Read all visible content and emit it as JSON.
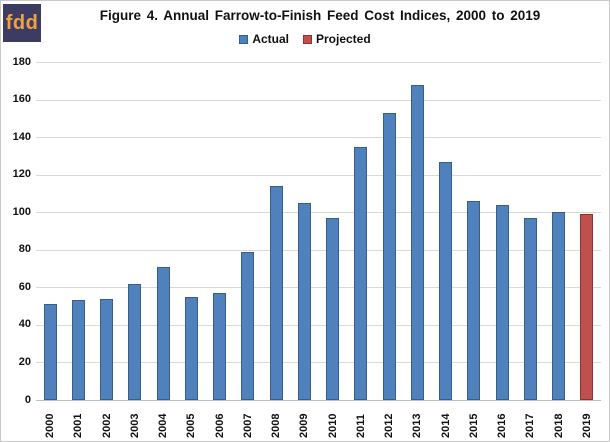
{
  "logo": {
    "text": "fdd",
    "bg_color": "#3c3c63",
    "text_color": "#f2a23c"
  },
  "title": "Figure 4. Annual Farrow-to-Finish Feed Cost Indices, 2000 to 2019",
  "legend": [
    {
      "label": "Actual",
      "color": "#4f81bd",
      "border_color": "#385d8a"
    },
    {
      "label": "Projected",
      "color": "#c0504d",
      "border_color": "#8f3330"
    }
  ],
  "colors": {
    "gridline": "#d9d9d9",
    "baseline": "#bfbfbf",
    "frame": "#c9c9c9"
  },
  "chart_data": {
    "type": "bar",
    "title": "Figure 4. Annual Farrow-to-Finish Feed Cost Indices, 2000 to 2019",
    "categories": [
      "2000",
      "2001",
      "2002",
      "2003",
      "2004",
      "2005",
      "2006",
      "2007",
      "2008",
      "2009",
      "2010",
      "2011",
      "2012",
      "2013",
      "2014",
      "2015",
      "2016",
      "2017",
      "2018",
      "2019"
    ],
    "series": [
      {
        "name": "Actual",
        "color": "#4f81bd",
        "border_color": "#385d8a",
        "values": [
          51,
          53,
          54,
          62,
          71,
          55,
          57,
          79,
          114,
          105,
          97,
          135,
          153,
          168,
          127,
          106,
          104,
          97,
          100,
          null
        ]
      },
      {
        "name": "Projected",
        "color": "#c0504d",
        "border_color": "#8f3330",
        "values": [
          null,
          null,
          null,
          null,
          null,
          null,
          null,
          null,
          null,
          null,
          null,
          null,
          null,
          null,
          null,
          null,
          null,
          null,
          null,
          99
        ]
      }
    ],
    "xlabel": "",
    "ylabel": "",
    "ylim": [
      0,
      180
    ],
    "ytick_step": 20,
    "grid": true,
    "legend_position": "top-center"
  }
}
